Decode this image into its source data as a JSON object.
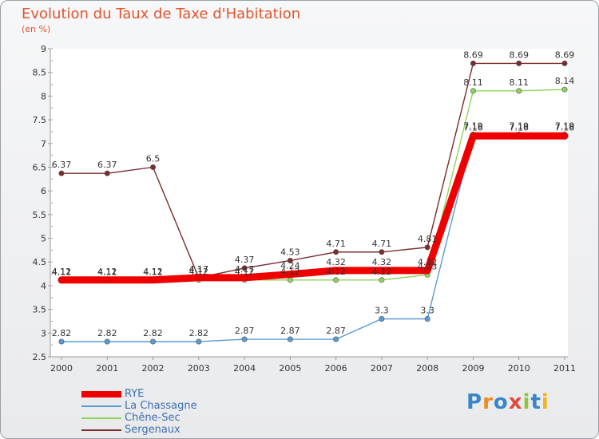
{
  "title": "Evolution du Taux de Taxe d'Habitation",
  "unit": "(en %)",
  "brand": "Proxiti",
  "chart_data": {
    "type": "line",
    "categories": [
      "2000",
      "2001",
      "2002",
      "2003",
      "2004",
      "2005",
      "2006",
      "2007",
      "2008",
      "2009",
      "2010",
      "2011"
    ],
    "ylim": [
      2.5,
      9
    ],
    "yticks": [
      2.5,
      3,
      3.5,
      4,
      4.5,
      5,
      5.5,
      6,
      6.5,
      7,
      7.5,
      8,
      8.5,
      9
    ],
    "series": [
      {
        "name": "RYE",
        "color": "#ee0000",
        "values": [
          4.12,
          4.12,
          4.12,
          4.17,
          4.17,
          4.24,
          4.32,
          4.32,
          4.32,
          7.16,
          7.16,
          7.16
        ],
        "labels": [
          "4.12",
          "4.12",
          "4.12",
          "4.17",
          "4.17",
          "4.24",
          "4.32",
          "4.32",
          "4.32",
          "7.16",
          "7.16",
          "7.16"
        ]
      },
      {
        "name": "La Chassagne",
        "color": "#5b9bd5",
        "values": [
          2.82,
          2.82,
          2.82,
          2.82,
          2.87,
          2.87,
          2.87,
          3.3,
          3.3,
          7.19,
          7.19,
          7.19
        ],
        "labels": [
          "2.82",
          "2.82",
          "2.82",
          "2.82",
          "2.87",
          "2.87",
          "2.87",
          "3.3",
          "3.3",
          "7.19",
          "7.19",
          "7.19"
        ]
      },
      {
        "name": "Chêne-Sec",
        "color": "#8fd35a",
        "values": [
          4.11,
          4.11,
          4.11,
          4.12,
          4.12,
          4.12,
          4.12,
          4.12,
          4.23,
          8.11,
          8.11,
          8.14
        ],
        "labels": [
          "4.11",
          "4.11",
          "4.11",
          "4.12",
          "4.12",
          "4.12",
          "4.12",
          "4.12",
          "4.23",
          "8.11",
          "8.11",
          "8.14"
        ]
      },
      {
        "name": "Sergenaux",
        "color": "#7b2c2c",
        "values": [
          6.37,
          6.37,
          6.5,
          4.17,
          4.37,
          4.53,
          4.71,
          4.71,
          4.81,
          8.69,
          8.69,
          8.69
        ],
        "labels": [
          "6.37",
          "6.37",
          "6.5",
          "4.17",
          "4.37",
          "4.53",
          "4.71",
          "4.71",
          "4.81",
          "8.69",
          "8.69",
          "8.69"
        ]
      }
    ]
  }
}
